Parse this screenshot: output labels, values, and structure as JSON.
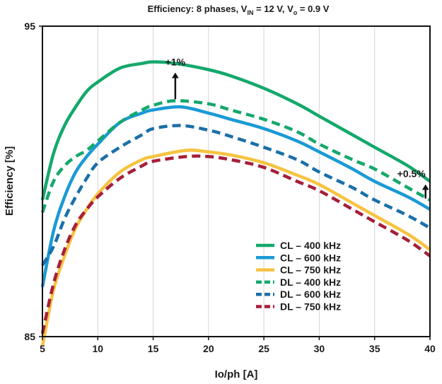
{
  "chart_data": {
    "type": "line",
    "title": {
      "prefix": "Efficiency: 8 phases, V",
      "vin_sub": "IN",
      "mid": " = 12 V, V",
      "vo_sub": "o",
      "suffix": " = 0.9 V"
    },
    "xlabel": "Io/ph [A]",
    "ylabel": "Efficiency [%]",
    "xlim": [
      5,
      40
    ],
    "ylim": [
      85,
      95
    ],
    "xticks": [
      5,
      10,
      15,
      20,
      25,
      30,
      35,
      40
    ],
    "xtick_labels": [
      "5",
      "10",
      "15",
      "20",
      "25",
      "30",
      "35",
      "40"
    ],
    "yticks": [
      85,
      95
    ],
    "ytick_labels": [
      "85",
      "95"
    ],
    "grid": true,
    "legend_position": "bottom-right",
    "series": [
      {
        "name": "CL – 400 kHz",
        "style": "solid",
        "color": "#14a86b",
        "x": [
          5,
          6,
          7,
          8,
          9,
          10,
          12,
          14,
          15,
          17,
          20,
          22,
          25,
          28,
          30,
          33,
          35,
          38,
          40
        ],
        "y": [
          89.4,
          90.9,
          91.8,
          92.4,
          92.9,
          93.2,
          93.65,
          93.8,
          93.85,
          93.8,
          93.6,
          93.4,
          93.0,
          92.5,
          92.1,
          91.5,
          91.1,
          90.5,
          90.0
        ]
      },
      {
        "name": "CL – 600 kHz",
        "style": "solid",
        "color": "#1a9ad6",
        "x": [
          5,
          6,
          7,
          8,
          9,
          10,
          12,
          14,
          15,
          17.5,
          20,
          22,
          25,
          28,
          30,
          33,
          35,
          38,
          40
        ],
        "y": [
          86.6,
          88.4,
          89.5,
          90.3,
          90.8,
          91.2,
          91.9,
          92.2,
          92.3,
          92.4,
          92.2,
          92.0,
          91.7,
          91.3,
          90.95,
          90.4,
          90.0,
          89.5,
          89.1
        ]
      },
      {
        "name": "CL – 750 kHz",
        "style": "solid",
        "color": "#f7c342",
        "x": [
          5,
          6,
          7,
          8,
          9,
          10,
          12,
          14,
          15,
          18,
          20,
          22,
          25,
          28,
          30,
          33,
          35,
          38,
          40
        ],
        "y": [
          84.7,
          86.5,
          87.6,
          88.5,
          89.1,
          89.6,
          90.3,
          90.7,
          90.8,
          91.0,
          90.95,
          90.85,
          90.6,
          90.2,
          89.9,
          89.3,
          88.9,
          88.3,
          87.8
        ]
      },
      {
        "name": "DL – 400 kHz",
        "style": "dashed",
        "color": "#14a86b",
        "x": [
          5,
          6,
          7,
          8,
          9,
          10,
          12,
          14,
          15,
          17,
          20,
          22,
          25,
          28,
          30,
          33,
          35,
          38,
          40
        ],
        "y": [
          89.0,
          90.0,
          90.5,
          90.8,
          91.0,
          91.3,
          91.9,
          92.3,
          92.45,
          92.6,
          92.5,
          92.3,
          92.0,
          91.6,
          91.2,
          90.7,
          90.4,
          89.8,
          89.4
        ]
      },
      {
        "name": "DL – 600 kHz",
        "style": "dashed",
        "color": "#1b6fa8",
        "x": [
          5,
          6,
          7,
          8,
          9,
          10,
          12,
          14,
          15,
          17.5,
          20,
          22,
          25,
          28,
          30,
          33,
          35,
          38,
          40
        ],
        "y": [
          87.3,
          87.9,
          88.8,
          89.5,
          90.1,
          90.6,
          91.1,
          91.5,
          91.7,
          91.8,
          91.65,
          91.45,
          91.1,
          90.7,
          90.3,
          89.8,
          89.4,
          88.9,
          88.5
        ]
      },
      {
        "name": "DL – 750 kHz",
        "style": "dashed",
        "color": "#a61f3a",
        "x": [
          5,
          6,
          7,
          8,
          9,
          10,
          12,
          14,
          15,
          18,
          20,
          22,
          25,
          28,
          30,
          33,
          35,
          38,
          40
        ],
        "y": [
          85.1,
          86.7,
          87.8,
          88.6,
          89.1,
          89.5,
          90.1,
          90.5,
          90.65,
          90.8,
          90.8,
          90.7,
          90.45,
          90.0,
          89.7,
          89.1,
          88.7,
          88.1,
          87.6
        ]
      }
    ],
    "annotations": [
      {
        "text": "+1%",
        "x": 17,
        "y_from": 92.65,
        "y_to": 93.55
      },
      {
        "text": "+0.5%",
        "x": 39.6,
        "y_from": 89.45,
        "y_to": 89.95
      }
    ]
  }
}
